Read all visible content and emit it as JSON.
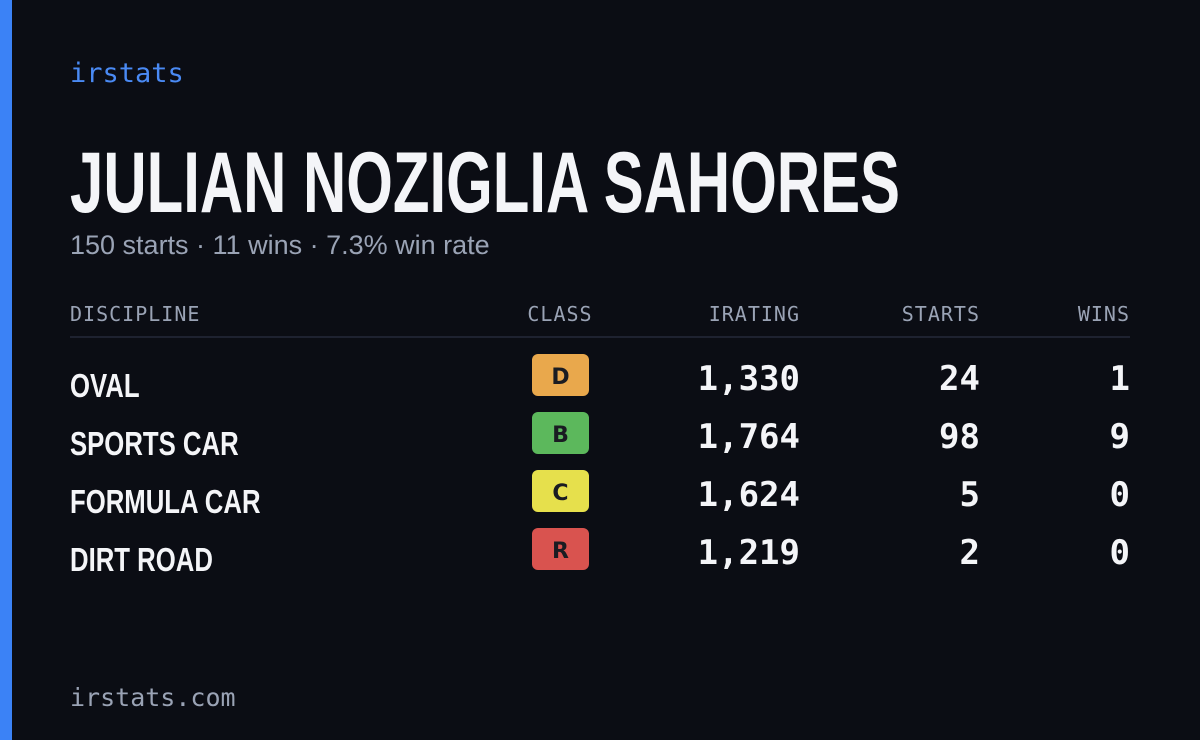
{
  "header": {
    "brand": "irstats",
    "name": "JULIAN NOZIGLIA SAHORES",
    "summary": "150 starts · 11 wins · 7.3% win rate"
  },
  "table": {
    "columns": [
      "DISCIPLINE",
      "CLASS",
      "IRATING",
      "STARTS",
      "WINS"
    ],
    "rows": [
      {
        "discipline": "OVAL",
        "class": "D",
        "color": "#e9a84c",
        "irating": "1,330",
        "starts": "24",
        "wins": "1"
      },
      {
        "discipline": "SPORTS CAR",
        "class": "B",
        "color": "#5cb85c",
        "irating": "1,764",
        "starts": "98",
        "wins": "9"
      },
      {
        "discipline": "FORMULA CAR",
        "class": "C",
        "color": "#e6e04c",
        "irating": "1,624",
        "starts": "5",
        "wins": "0"
      },
      {
        "discipline": "DIRT ROAD",
        "class": "R",
        "color": "#d9534f",
        "irating": "1,219",
        "starts": "2",
        "wins": "0"
      }
    ]
  },
  "footer": {
    "site": "irstats.com"
  }
}
